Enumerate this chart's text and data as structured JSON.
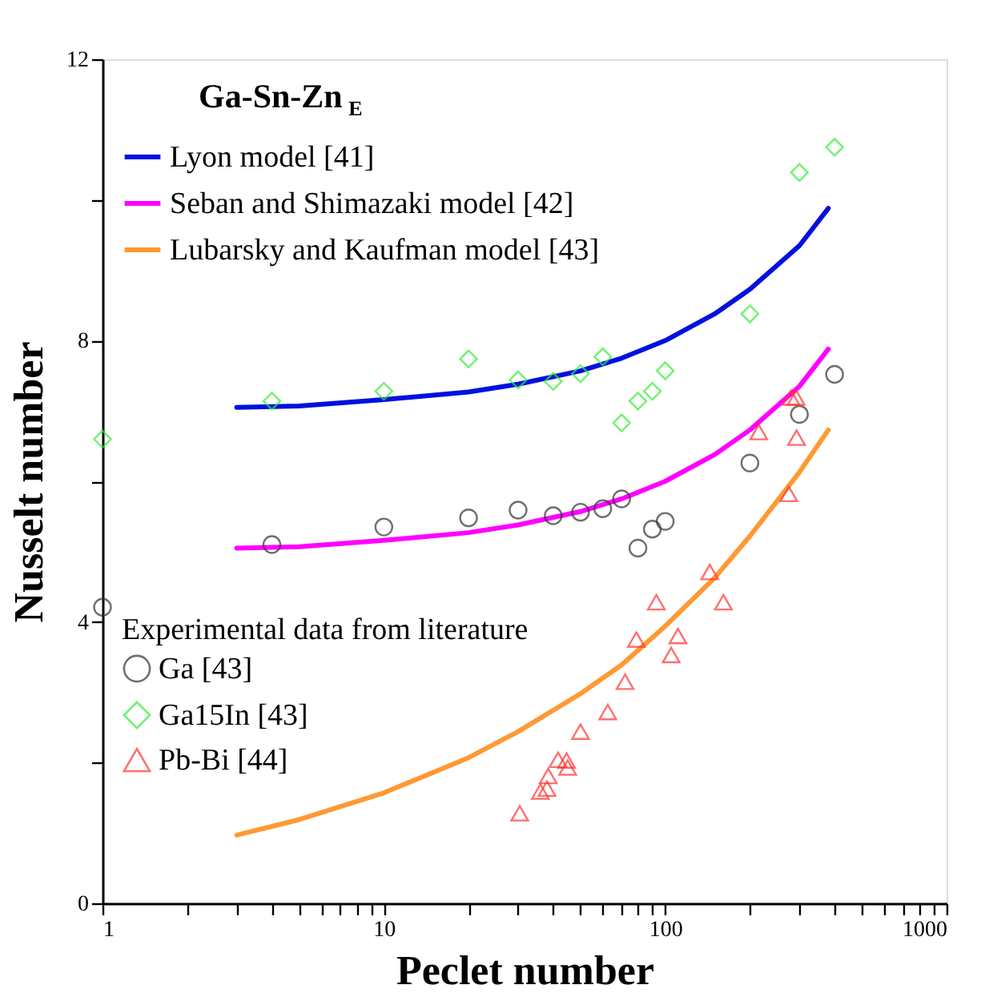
{
  "chart_data": {
    "type": "scatter",
    "title": "Ga-Sn-Zn$_{E}$",
    "xlabel": "Peclet number",
    "ylabel": "Nusselt number",
    "legend_title": "Experimental data from literature",
    "log": "x",
    "grid": false,
    "legend": "top left",
    "xlim": [
      1,
      1000
    ],
    "ylim": [
      0,
      12
    ],
    "xticks": [
      1,
      {
        "value": 2,
        "label": null
      },
      {
        "value": 3,
        "label": null
      },
      {
        "value": 4,
        "label": null
      },
      {
        "value": 5,
        "label": null
      },
      {
        "value": 6,
        "label": null
      },
      {
        "value": 7,
        "label": null
      },
      {
        "value": 8,
        "label": null
      },
      {
        "value": 9,
        "label": null
      },
      10,
      {
        "value": 20,
        "label": null
      },
      {
        "value": 30,
        "label": null
      },
      {
        "value": 40,
        "label": null
      },
      {
        "value": 50,
        "label": null
      },
      {
        "value": 60,
        "label": null
      },
      {
        "value": 70,
        "label": null
      },
      {
        "value": 80,
        "label": null
      },
      {
        "value": 90,
        "label": null
      },
      100,
      {
        "value": 200,
        "label": null
      },
      {
        "value": 300,
        "label": null
      },
      {
        "value": 400,
        "label": null
      },
      {
        "value": 500,
        "label": null
      },
      {
        "value": 600,
        "label": null
      },
      {
        "value": 700,
        "label": null
      },
      {
        "value": 800,
        "label": null
      },
      {
        "value": 900,
        "label": null
      },
      1000
    ],
    "yticks": [
      0,
      {
        "value": 2,
        "label": null
      },
      4,
      {
        "value": 6,
        "label": null
      },
      8,
      {
        "value": 10,
        "label": null
      },
      12
    ],
    "series": [
      {
        "name": "Lyon model [41]",
        "type": "line",
        "color": "#0010e0",
        "line_style": "solid",
        "marker": "none",
        "x": [
          3,
          5,
          10,
          20,
          30,
          50,
          70,
          100,
          150,
          200,
          300,
          380
        ],
        "values": [
          7.05,
          7.07,
          7.16,
          7.27,
          7.38,
          7.57,
          7.75,
          8.0,
          8.38,
          8.73,
          9.35,
          9.88
        ]
      },
      {
        "name": "Seban and Shimazaki model [42]",
        "type": "line",
        "color": "#ff00ff",
        "line_style": "solid",
        "marker": "none",
        "x": [
          3,
          5,
          10,
          20,
          30,
          50,
          70,
          100,
          150,
          200,
          300,
          380
        ],
        "values": [
          5.05,
          5.07,
          5.16,
          5.27,
          5.38,
          5.57,
          5.75,
          6.0,
          6.38,
          6.73,
          7.35,
          7.88
        ]
      },
      {
        "name": "Lubarsky and Kaufman model [43]",
        "type": "line",
        "color": "#ff9933",
        "line_style": "solid",
        "marker": "none",
        "x": [
          3,
          5,
          10,
          20,
          30,
          50,
          70,
          100,
          150,
          200,
          300,
          380
        ],
        "values": [
          0.97,
          1.19,
          1.57,
          2.07,
          2.44,
          2.98,
          3.39,
          3.94,
          4.63,
          5.22,
          6.13,
          6.73
        ]
      },
      {
        "name": "Ga [43]",
        "color": "#333333",
        "marker": "circle",
        "x": [
          1,
          4,
          10,
          20,
          30,
          40,
          50,
          60,
          70,
          80,
          90,
          100,
          200,
          300,
          400
        ],
        "values": [
          4.21,
          5.1,
          5.35,
          5.48,
          5.59,
          5.51,
          5.56,
          5.61,
          5.75,
          5.05,
          5.32,
          5.43,
          6.26,
          6.95,
          7.52
        ]
      },
      {
        "name": "Ga15In [43]",
        "color": "#33ee33",
        "marker": "diamond",
        "x": [
          1,
          4,
          10,
          20,
          30,
          40,
          50,
          60,
          70,
          80,
          90,
          100,
          200,
          300,
          400
        ],
        "values": [
          6.6,
          7.14,
          7.28,
          7.74,
          7.44,
          7.42,
          7.53,
          7.77,
          6.83,
          7.14,
          7.28,
          7.57,
          8.38,
          10.39,
          10.75
        ]
      },
      {
        "name": "Pb-Bi [44]",
        "color": "#ff3333",
        "marker": "triangle",
        "x": [
          280,
          292,
          215,
          293,
          275,
          144,
          93,
          161,
          79,
          111,
          105,
          72,
          62.5,
          50,
          41.6,
          44.6,
          45,
          38.4,
          38,
          36,
          30.4
        ],
        "values": [
          7.19,
          7.19,
          6.7,
          6.62,
          5.82,
          4.71,
          4.28,
          4.28,
          3.75,
          3.8,
          3.53,
          3.15,
          2.72,
          2.44,
          2.04,
          2.03,
          1.93,
          1.81,
          1.63,
          1.59,
          1.28
        ]
      }
    ]
  }
}
